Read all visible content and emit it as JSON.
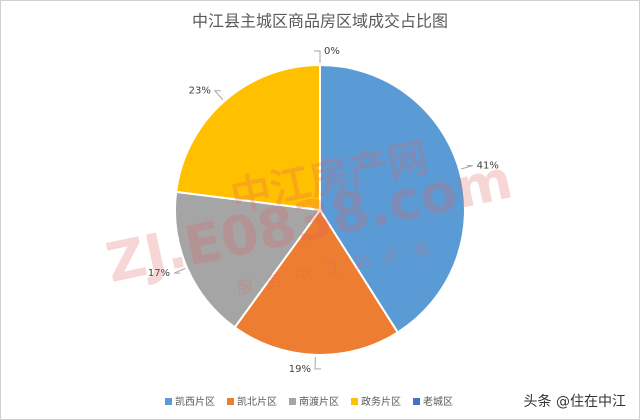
{
  "chart_data": {
    "type": "pie",
    "title": "中江县主城区商品房区域成交占比图",
    "categories": [
      "凯西片区",
      "凯北片区",
      "南渡片区",
      "政务片区",
      "老城区"
    ],
    "values": [
      41,
      19,
      17,
      23,
      0
    ],
    "value_labels": [
      "41%",
      "19%",
      "17%",
      "23%",
      "0%"
    ],
    "colors": [
      "#5b9bd5",
      "#ed7d31",
      "#a5a5a5",
      "#ffc000",
      "#4472c4"
    ],
    "legend": "bottom"
  },
  "watermark": {
    "brand": "中江房产网",
    "url": "ZJ.E0838.com",
    "slogan": "服务中江购房者"
  },
  "source": "头条 @住在中江"
}
